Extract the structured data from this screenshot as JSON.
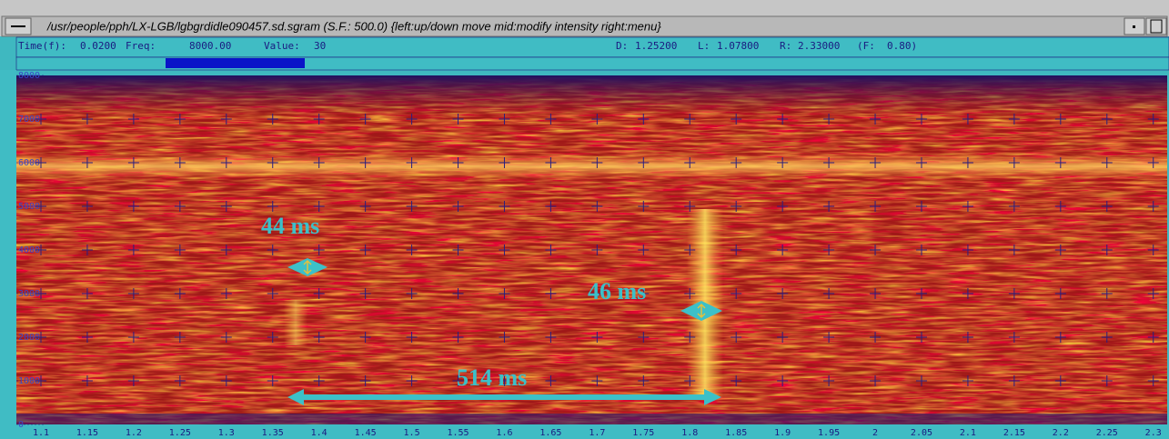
{
  "window": {
    "title": "/usr/people/pph/LX-LGB/lgbgrdidle090457.sd.sgram (S.F.: 500.0) {left:up/down move  mid:modify intensity  right:menu}"
  },
  "status": {
    "time_label": "Time(f):",
    "time": "0.0200",
    "freq_label": "Freq:",
    "freq": "8000.00",
    "value_label": "Value:",
    "value": "30",
    "d_label": "D:",
    "d": "1.25200",
    "l_label": "L:",
    "l": "1.07800",
    "r_label": "R:",
    "r": "2.33000",
    "f_label": "(F:",
    "f": "0.80)"
  },
  "spectrogram": {
    "xlim": [
      1.0735,
      2.315
    ],
    "ylim": [
      0,
      8000
    ],
    "xticks": [
      1.1,
      1.15,
      1.2,
      1.25,
      1.3,
      1.35,
      1.4,
      1.45,
      1.5,
      1.55,
      1.6,
      1.65,
      1.7,
      1.75,
      1.8,
      1.85,
      1.9,
      1.95,
      2,
      2.05,
      2.1,
      2.15,
      2.2,
      2.25,
      2.3
    ],
    "yticks": [
      0,
      1000,
      2000,
      3000,
      4000,
      5000,
      6000,
      7000,
      8000
    ],
    "annotations": [
      "44 ms",
      "46 ms",
      "514 ms"
    ]
  }
}
